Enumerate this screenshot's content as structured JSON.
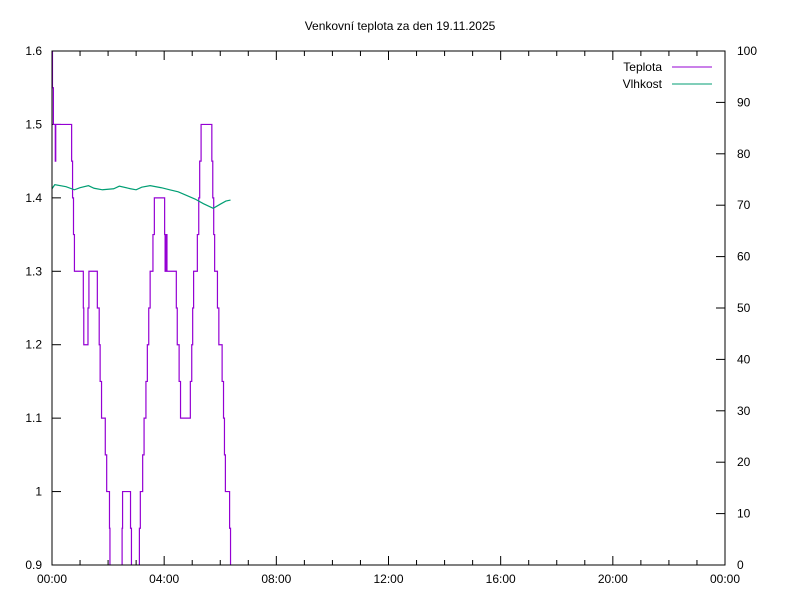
{
  "chart_data": {
    "type": "line",
    "title": "Venkovní teplota za den 19.11.2025",
    "xlabel": "",
    "ylabel": "",
    "y2label": "",
    "xlim": [
      "00:00",
      "24:00"
    ],
    "ylim": [
      0.9,
      1.6
    ],
    "y2lim": [
      0,
      100
    ],
    "x_ticks": [
      "00:00",
      "04:00",
      "08:00",
      "12:00",
      "16:00",
      "20:00",
      "00:00"
    ],
    "y_ticks": [
      "0.9",
      "1",
      "1.1",
      "1.2",
      "1.3",
      "1.4",
      "1.5",
      "1.6"
    ],
    "y2_ticks": [
      "0",
      "10",
      "20",
      "30",
      "40",
      "50",
      "60",
      "70",
      "80",
      "90",
      "100"
    ],
    "grid": false,
    "legend_position": "top-right",
    "series": [
      {
        "name": "Teplota",
        "axis": "left",
        "style": "steps",
        "color": "#9400d3",
        "points": [
          [
            "00:00",
            1.6
          ],
          [
            "00:01",
            1.55
          ],
          [
            "00:03",
            1.5
          ],
          [
            "00:07",
            1.45
          ],
          [
            "00:08",
            1.5
          ],
          [
            "00:42",
            1.45
          ],
          [
            "00:44",
            1.4
          ],
          [
            "00:46",
            1.35
          ],
          [
            "00:48",
            1.3
          ],
          [
            "01:07",
            1.25
          ],
          [
            "01:08",
            1.2
          ],
          [
            "01:17",
            1.25
          ],
          [
            "01:19",
            1.3
          ],
          [
            "01:37",
            1.25
          ],
          [
            "01:41",
            1.2
          ],
          [
            "01:43",
            1.15
          ],
          [
            "01:46",
            1.1
          ],
          [
            "01:54",
            1.05
          ],
          [
            "01:57",
            1.0
          ],
          [
            "02:03",
            0.95
          ],
          [
            "02:04",
            0.85
          ],
          [
            "02:30",
            0.95
          ],
          [
            "02:31",
            1.0
          ],
          [
            "02:48",
            0.95
          ],
          [
            "02:50",
            0.85
          ],
          [
            "03:07",
            0.95
          ],
          [
            "03:09",
            1.0
          ],
          [
            "03:14",
            1.05
          ],
          [
            "03:17",
            1.1
          ],
          [
            "03:21",
            1.15
          ],
          [
            "03:24",
            1.2
          ],
          [
            "03:27",
            1.25
          ],
          [
            "03:30",
            1.3
          ],
          [
            "03:36",
            1.35
          ],
          [
            "03:39",
            1.4
          ],
          [
            "04:01",
            1.35
          ],
          [
            "04:02",
            1.3
          ],
          [
            "04:03",
            1.35
          ],
          [
            "04:04",
            1.3
          ],
          [
            "04:05",
            1.35
          ],
          [
            "04:06",
            1.3
          ],
          [
            "04:26",
            1.25
          ],
          [
            "04:28",
            1.2
          ],
          [
            "04:32",
            1.15
          ],
          [
            "04:35",
            1.1
          ],
          [
            "04:56",
            1.15
          ],
          [
            "04:59",
            1.2
          ],
          [
            "05:01",
            1.25
          ],
          [
            "05:03",
            1.3
          ],
          [
            "05:11",
            1.35
          ],
          [
            "05:14",
            1.4
          ],
          [
            "05:16",
            1.45
          ],
          [
            "05:19",
            1.5
          ],
          [
            "05:42",
            1.45
          ],
          [
            "05:44",
            1.4
          ],
          [
            "05:46",
            1.35
          ],
          [
            "05:48",
            1.3
          ],
          [
            "05:54",
            1.25
          ],
          [
            "05:57",
            1.2
          ],
          [
            "06:04",
            1.15
          ],
          [
            "06:07",
            1.1
          ],
          [
            "06:09",
            1.05
          ],
          [
            "06:11",
            1.0
          ],
          [
            "06:20",
            0.95
          ],
          [
            "06:22",
            0.85
          ],
          [
            "06:25",
            0.85
          ]
        ]
      },
      {
        "name": "Vlhkost",
        "axis": "right",
        "style": "lines",
        "color": "#009e73",
        "points": [
          [
            "00:00",
            73.2
          ],
          [
            "00:06",
            74.0
          ],
          [
            "00:30",
            73.6
          ],
          [
            "00:48",
            73.0
          ],
          [
            "01:00",
            73.4
          ],
          [
            "01:18",
            73.8
          ],
          [
            "01:30",
            73.3
          ],
          [
            "01:48",
            73.0
          ],
          [
            "02:12",
            73.2
          ],
          [
            "02:24",
            73.7
          ],
          [
            "02:48",
            73.2
          ],
          [
            "03:00",
            73.0
          ],
          [
            "03:12",
            73.5
          ],
          [
            "03:30",
            73.8
          ],
          [
            "03:54",
            73.4
          ],
          [
            "04:12",
            73.0
          ],
          [
            "04:30",
            72.6
          ],
          [
            "04:48",
            71.9
          ],
          [
            "05:06",
            71.2
          ],
          [
            "05:24",
            70.3
          ],
          [
            "05:45",
            69.4
          ],
          [
            "06:00",
            70.2
          ],
          [
            "06:12",
            70.8
          ],
          [
            "06:22",
            71.0
          ]
        ]
      }
    ]
  }
}
